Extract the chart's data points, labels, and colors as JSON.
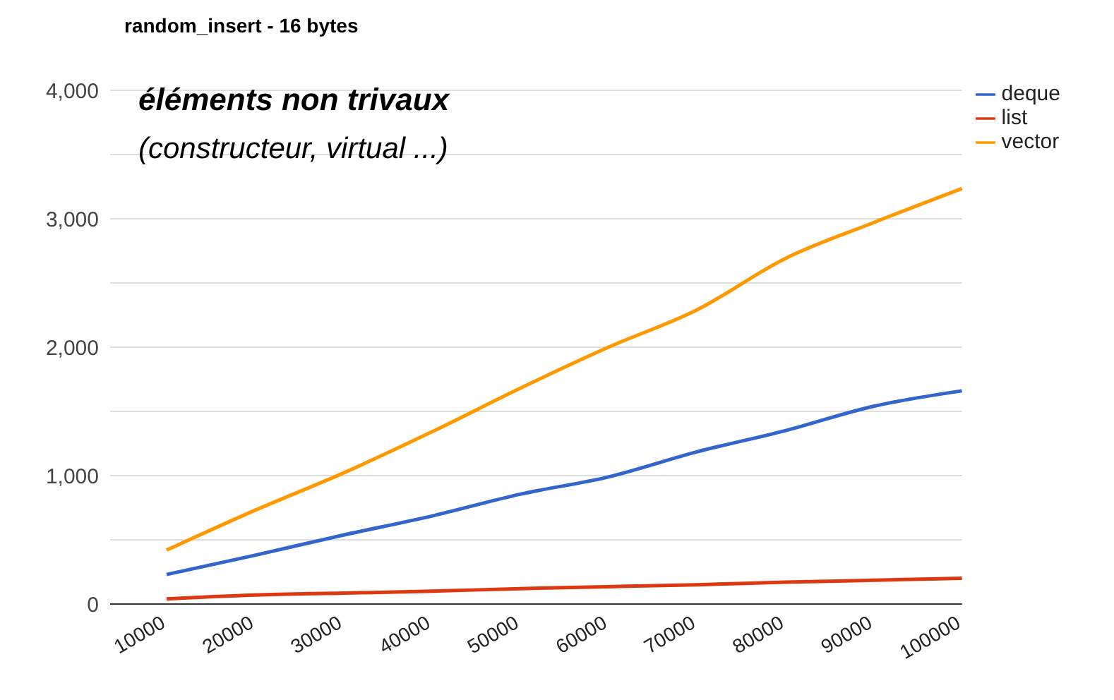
{
  "chart_data": {
    "type": "line",
    "title": "random_insert - 16 bytes",
    "annotations": [
      "éléments non trivaux",
      "(constructeur, virtual ...)"
    ],
    "categories": [
      "10000",
      "20000",
      "30000",
      "40000",
      "50000",
      "60000",
      "70000",
      "80000",
      "90000",
      "100000"
    ],
    "series": [
      {
        "name": "deque",
        "color": "#3366cc",
        "values": [
          230,
          380,
          537,
          685,
          855,
          990,
          1185,
          1350,
          1540,
          1660
        ]
      },
      {
        "name": "list",
        "color": "#dc3912",
        "values": [
          40,
          70,
          85,
          100,
          120,
          135,
          150,
          170,
          185,
          200
        ]
      },
      {
        "name": "vector",
        "color": "#ff9900",
        "values": [
          420,
          730,
          1020,
          1340,
          1680,
          2000,
          2290,
          2690,
          2970,
          3235
        ]
      }
    ],
    "ylim": [
      0,
      4000
    ],
    "yticks": [
      0,
      {
        "value": 500,
        "label": null
      },
      {
        "value": 1000,
        "label": "1,000"
      },
      {
        "value": 1500,
        "label": null
      },
      {
        "value": 2000,
        "label": "2,000"
      },
      {
        "value": 2500,
        "label": null
      },
      {
        "value": 3000,
        "label": "3,000"
      },
      {
        "value": 3500,
        "label": null
      },
      {
        "value": 4000,
        "label": "4,000"
      }
    ],
    "grid": "y",
    "legend": "top right",
    "marker": "none",
    "line_style": "solid"
  }
}
